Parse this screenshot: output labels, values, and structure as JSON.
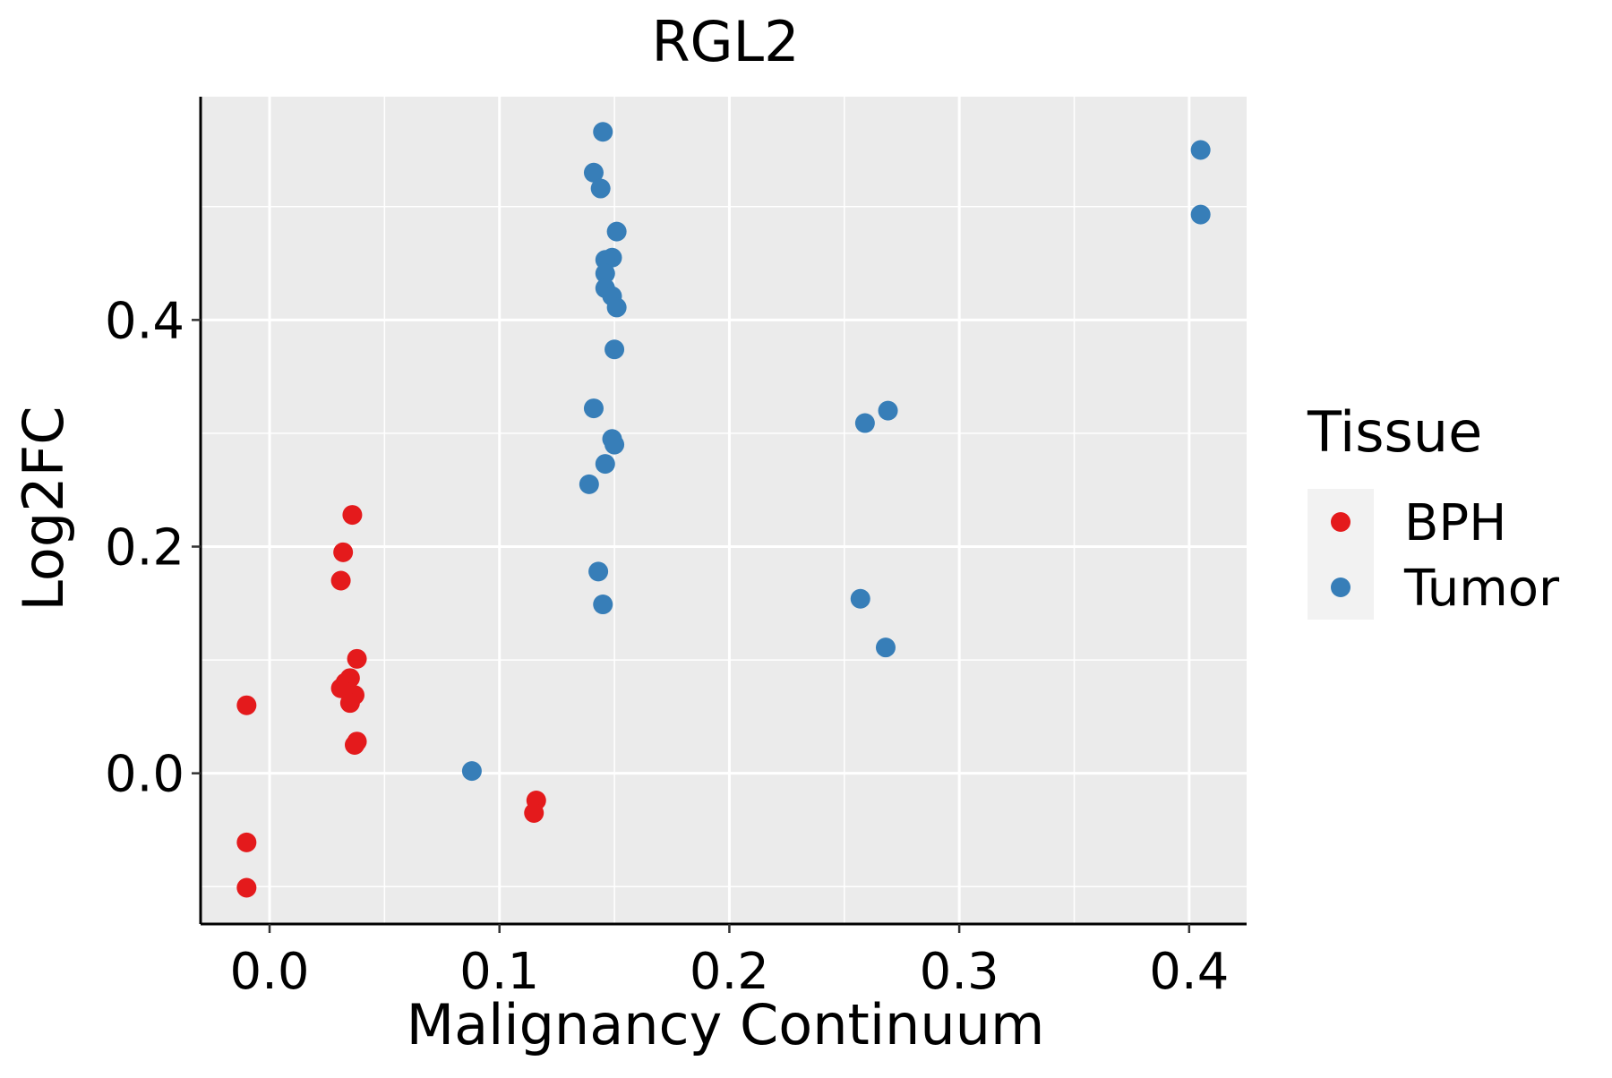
{
  "chart_data": {
    "type": "scatter",
    "title": "RGL2",
    "xlabel": "Malignancy Continuum",
    "ylabel": "Log2FC",
    "xlim": [
      -0.03,
      0.425
    ],
    "ylim": [
      -0.133,
      0.597
    ],
    "x_ticks": [
      0.0,
      0.1,
      0.2,
      0.3,
      0.4
    ],
    "x_tick_labels": [
      "0.0",
      "0.1",
      "0.2",
      "0.3",
      "0.4"
    ],
    "y_ticks": [
      0.0,
      0.2,
      0.4
    ],
    "y_tick_labels": [
      "0.0",
      "0.2",
      "0.4"
    ],
    "grid": true,
    "legend": {
      "title": "Tissue",
      "position": "right",
      "entries": [
        {
          "label": "BPH",
          "color": "#E41A1C"
        },
        {
          "label": "Tumor",
          "color": "#377EB8"
        }
      ]
    },
    "series": [
      {
        "name": "BPH",
        "color": "#E41A1C",
        "points": [
          {
            "x": -0.01,
            "y": 0.06
          },
          {
            "x": -0.01,
            "y": -0.061
          },
          {
            "x": -0.01,
            "y": -0.101
          },
          {
            "x": 0.031,
            "y": 0.17
          },
          {
            "x": 0.032,
            "y": 0.195
          },
          {
            "x": 0.036,
            "y": 0.228
          },
          {
            "x": 0.038,
            "y": 0.101
          },
          {
            "x": 0.035,
            "y": 0.084
          },
          {
            "x": 0.033,
            "y": 0.08
          },
          {
            "x": 0.031,
            "y": 0.075
          },
          {
            "x": 0.037,
            "y": 0.069
          },
          {
            "x": 0.035,
            "y": 0.062
          },
          {
            "x": 0.038,
            "y": 0.028
          },
          {
            "x": 0.037,
            "y": 0.025
          },
          {
            "x": 0.116,
            "y": -0.024
          },
          {
            "x": 0.115,
            "y": -0.035
          }
        ]
      },
      {
        "name": "Tumor",
        "color": "#377EB8",
        "points": [
          {
            "x": 0.145,
            "y": 0.566
          },
          {
            "x": 0.141,
            "y": 0.53
          },
          {
            "x": 0.144,
            "y": 0.516
          },
          {
            "x": 0.151,
            "y": 0.478
          },
          {
            "x": 0.149,
            "y": 0.455
          },
          {
            "x": 0.146,
            "y": 0.453
          },
          {
            "x": 0.146,
            "y": 0.441
          },
          {
            "x": 0.146,
            "y": 0.428
          },
          {
            "x": 0.149,
            "y": 0.421
          },
          {
            "x": 0.151,
            "y": 0.411
          },
          {
            "x": 0.15,
            "y": 0.374
          },
          {
            "x": 0.141,
            "y": 0.322
          },
          {
            "x": 0.149,
            "y": 0.295
          },
          {
            "x": 0.15,
            "y": 0.29
          },
          {
            "x": 0.146,
            "y": 0.273
          },
          {
            "x": 0.139,
            "y": 0.255
          },
          {
            "x": 0.143,
            "y": 0.178
          },
          {
            "x": 0.145,
            "y": 0.149
          },
          {
            "x": 0.088,
            "y": 0.002
          },
          {
            "x": 0.259,
            "y": 0.309
          },
          {
            "x": 0.269,
            "y": 0.32
          },
          {
            "x": 0.257,
            "y": 0.154
          },
          {
            "x": 0.268,
            "y": 0.111
          },
          {
            "x": 0.405,
            "y": 0.55
          },
          {
            "x": 0.405,
            "y": 0.493
          }
        ]
      }
    ]
  }
}
